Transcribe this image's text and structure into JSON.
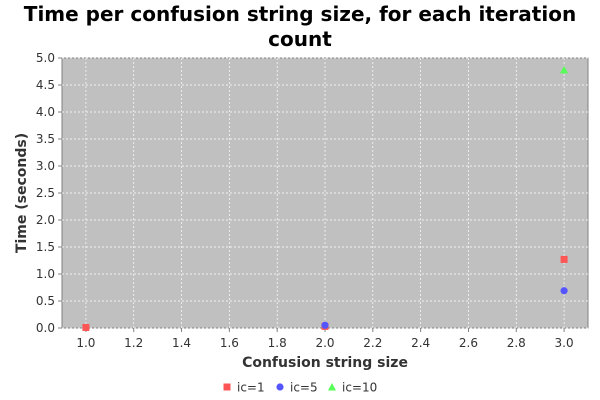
{
  "chart_data": {
    "type": "scatter",
    "title": "Time per confusion string size, for each iteration count",
    "xlabel": "Confusion string size",
    "ylabel": "Time (seconds)",
    "xlim": [
      0.9,
      3.1
    ],
    "ylim": [
      0.0,
      5.0
    ],
    "xticks": [
      "1.0",
      "1.2",
      "1.4",
      "1.6",
      "1.8",
      "2.0",
      "2.2",
      "2.4",
      "2.6",
      "2.8",
      "3.0"
    ],
    "yticks": [
      "0.0",
      "0.5",
      "1.0",
      "1.5",
      "2.0",
      "2.5",
      "3.0",
      "3.5",
      "4.0",
      "4.5",
      "5.0"
    ],
    "grid": true,
    "legend_position": "bottom",
    "plot_background": "#c0c0c0",
    "series": [
      {
        "name": "ic=1",
        "marker": "square",
        "color": "#ff5555",
        "x": [
          1.0,
          2.0,
          3.0
        ],
        "y": [
          0.01,
          0.03,
          1.27
        ]
      },
      {
        "name": "ic=5",
        "marker": "circle",
        "color": "#5555ff",
        "x": [
          2.0,
          3.0
        ],
        "y": [
          0.05,
          0.69
        ]
      },
      {
        "name": "ic=10",
        "marker": "triangle",
        "color": "#55ff55",
        "x": [
          3.0
        ],
        "y": [
          4.78
        ]
      }
    ]
  }
}
